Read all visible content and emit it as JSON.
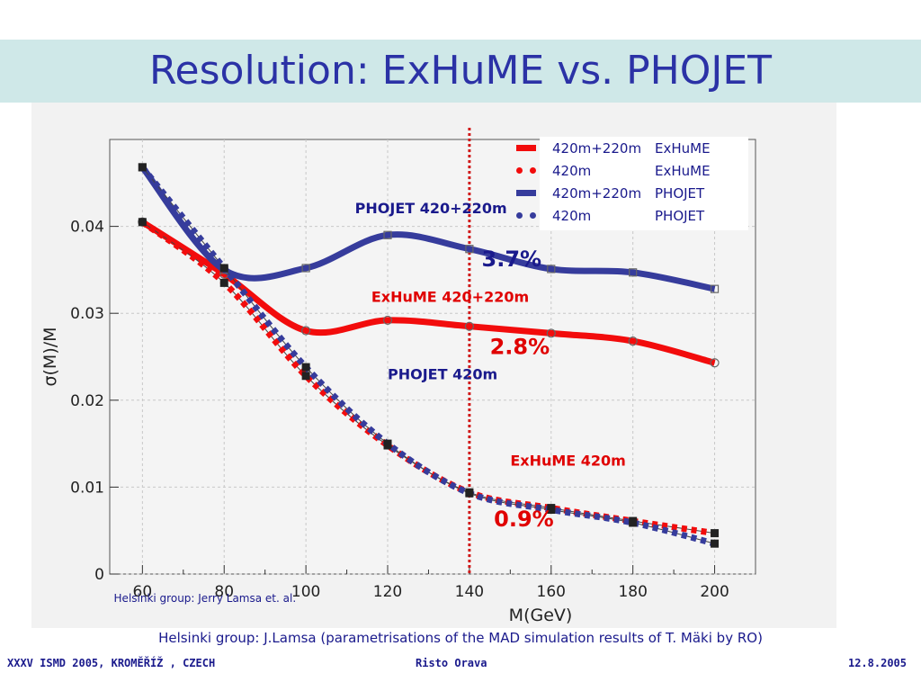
{
  "slide": {
    "title": "Resolution: ExHuME vs. PHOJET",
    "caption": "Helsinki group: J.Lamsa (parametrisations of the MAD simulation results of T. Mäki by RO)",
    "footer_left": "XXXV ISMD 2005, KROMĚŘÍŽ , CZECH",
    "footer_center": "Risto Orava",
    "footer_right": "12.8.2005",
    "colors": {
      "title_band": "#cfe8e8",
      "title_text": "#2b32a6",
      "red": "#f20c0c",
      "blue": "#363c9c",
      "dotted_marker": "#d11a1a"
    }
  },
  "chart_data": {
    "type": "line",
    "xlabel": "M(GeV)",
    "ylabel": "σ(M)/M",
    "xlim": [
      52,
      210
    ],
    "ylim": [
      0,
      0.05
    ],
    "x_ticks": [
      60,
      80,
      100,
      120,
      140,
      160,
      180,
      200
    ],
    "y_ticks": [
      0,
      0.01,
      0.02,
      0.03,
      0.04
    ],
    "y_tick_labels": [
      "0",
      "0.01",
      "0.02",
      "0.03",
      "0.04"
    ],
    "grid": true,
    "x": [
      60,
      80,
      100,
      120,
      140,
      160,
      180,
      200
    ],
    "series": [
      {
        "name": "420m+220m ExHuME",
        "style": "solid",
        "color": "#f20c0c",
        "values": [
          0.0405,
          0.0345,
          0.028,
          0.0292,
          0.0285,
          0.0277,
          0.0268,
          0.0243
        ]
      },
      {
        "name": "420m ExHuME",
        "style": "dotted",
        "color": "#f20c0c",
        "values": [
          0.0405,
          0.0335,
          0.0228,
          0.0148,
          0.0094,
          0.0076,
          0.0061,
          0.0047
        ]
      },
      {
        "name": "420m+220m PHOJET",
        "style": "solid",
        "color": "#363c9c",
        "values": [
          0.0468,
          0.035,
          0.0352,
          0.039,
          0.0374,
          0.0351,
          0.0347,
          0.0328
        ]
      },
      {
        "name": "420m PHOJET",
        "style": "dotted",
        "color": "#363c9c",
        "values": [
          0.0468,
          0.0352,
          0.0238,
          0.015,
          0.0093,
          0.0074,
          0.0059,
          0.0035
        ]
      }
    ],
    "vertical_marker": {
      "x": 140,
      "style": "dotted",
      "color": "#d11a1a"
    },
    "annotations": [
      {
        "text": "PHOJET 420+220m",
        "color": "#1a1a8c",
        "x": 112,
        "y": 0.0415
      },
      {
        "text": "ExHuME 420+220m",
        "color": "#e00000",
        "x": 116,
        "y": 0.0313
      },
      {
        "text": "PHOJET 420m",
        "color": "#1a1a8c",
        "x": 120,
        "y": 0.0224
      },
      {
        "text": "ExHuME 420m",
        "color": "#e00000",
        "x": 150,
        "y": 0.0125
      },
      {
        "text": "3.7%",
        "color": "#1a1a8c",
        "x": 143,
        "y": 0.0354
      },
      {
        "text": "2.8%",
        "color": "#e00000",
        "x": 145,
        "y": 0.0253
      },
      {
        "text": "0.9%",
        "color": "#e00000",
        "x": 146,
        "y": 0.0055
      },
      {
        "text": "Helsinki group: Jerry Lamsa et. al.",
        "color": "#1a1a8c",
        "x": 53,
        "y": -0.0032
      }
    ],
    "legend": {
      "position": "top-right",
      "entries": [
        {
          "label": "420m+220m",
          "generator": "ExHuME",
          "color": "#f20c0c",
          "style": "solid"
        },
        {
          "label": "420m",
          "generator": "ExHuME",
          "color": "#f20c0c",
          "style": "dotted"
        },
        {
          "label": "420m+220m",
          "generator": "PHOJET",
          "color": "#363c9c",
          "style": "solid"
        },
        {
          "label": "420m",
          "generator": "PHOJET",
          "color": "#363c9c",
          "style": "dotted"
        }
      ]
    }
  }
}
